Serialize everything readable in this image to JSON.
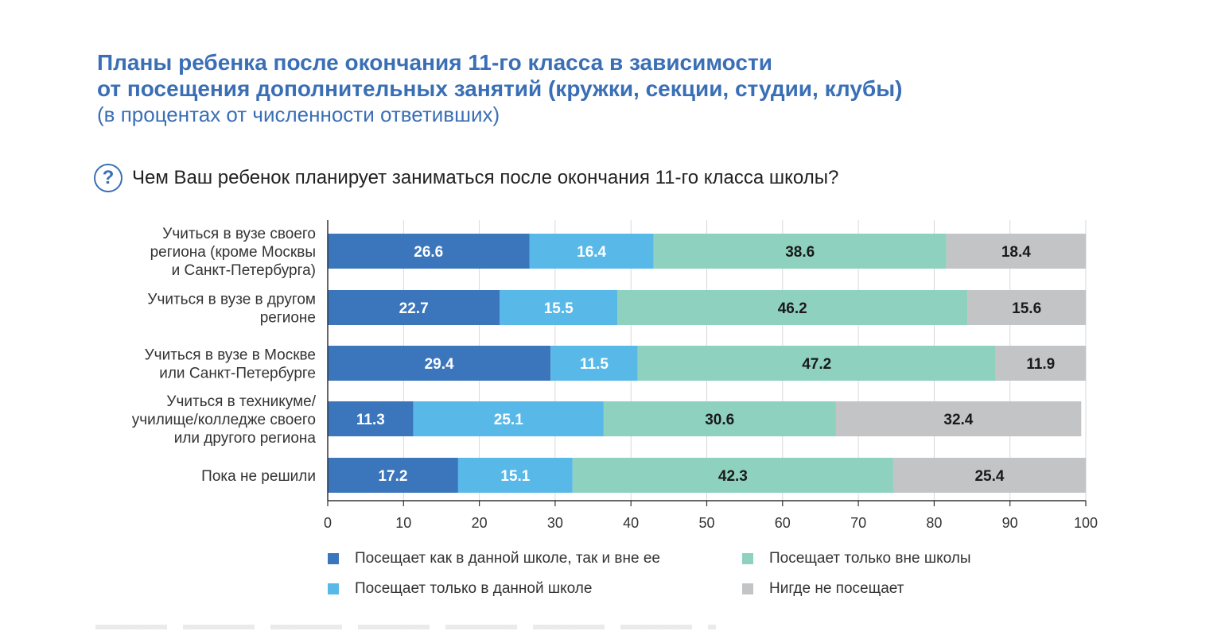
{
  "title": {
    "line1": "Планы ребенка после окончания 11-го класса в зависимости",
    "line2": "от посещения дополнительных занятий (кружки, секции, студии, клубы)",
    "subtitle": "(в процентах от численности ответивших)"
  },
  "question": {
    "icon": "?",
    "text": "Чем Ваш ребенок планирует заниматься после окончания 11-го класса школы?"
  },
  "colors": {
    "series": [
      "#3b75bb",
      "#58b8e8",
      "#8ed1bf",
      "#c2c4c6"
    ],
    "label_light": "#ffffff",
    "label_dark": "#1a1a1a"
  },
  "chart_data": {
    "type": "bar",
    "orientation": "horizontal",
    "stacked": true,
    "categories": [
      [
        "Учиться в вузе своего",
        "региона (кроме Москвы",
        "и Санкт-Петербурга)"
      ],
      [
        "Учиться в вузе в другом",
        "регионе"
      ],
      [
        "Учиться в вузе в Москве",
        "или Санкт-Петербурге"
      ],
      [
        "Учиться в техникуме/",
        "училище/колледже своего",
        "или другого региона"
      ],
      [
        "Пока не решили"
      ]
    ],
    "series": [
      {
        "name": "Посещает как в данной школе, так и вне ее",
        "values": [
          26.6,
          22.7,
          29.4,
          11.3,
          17.2
        ]
      },
      {
        "name": "Посещает только в данной школе",
        "values": [
          16.4,
          15.5,
          11.5,
          25.1,
          15.1
        ]
      },
      {
        "name": "Посещает только вне школы",
        "values": [
          38.6,
          46.2,
          47.2,
          30.6,
          42.3
        ]
      },
      {
        "name": "Нигде не посещает",
        "values": [
          18.4,
          15.6,
          11.9,
          32.4,
          25.4
        ]
      }
    ],
    "xlim": [
      0,
      100
    ],
    "xticks": [
      0,
      10,
      20,
      30,
      40,
      50,
      60,
      70,
      80,
      90,
      100
    ],
    "grid": true,
    "legend_position": "bottom"
  }
}
